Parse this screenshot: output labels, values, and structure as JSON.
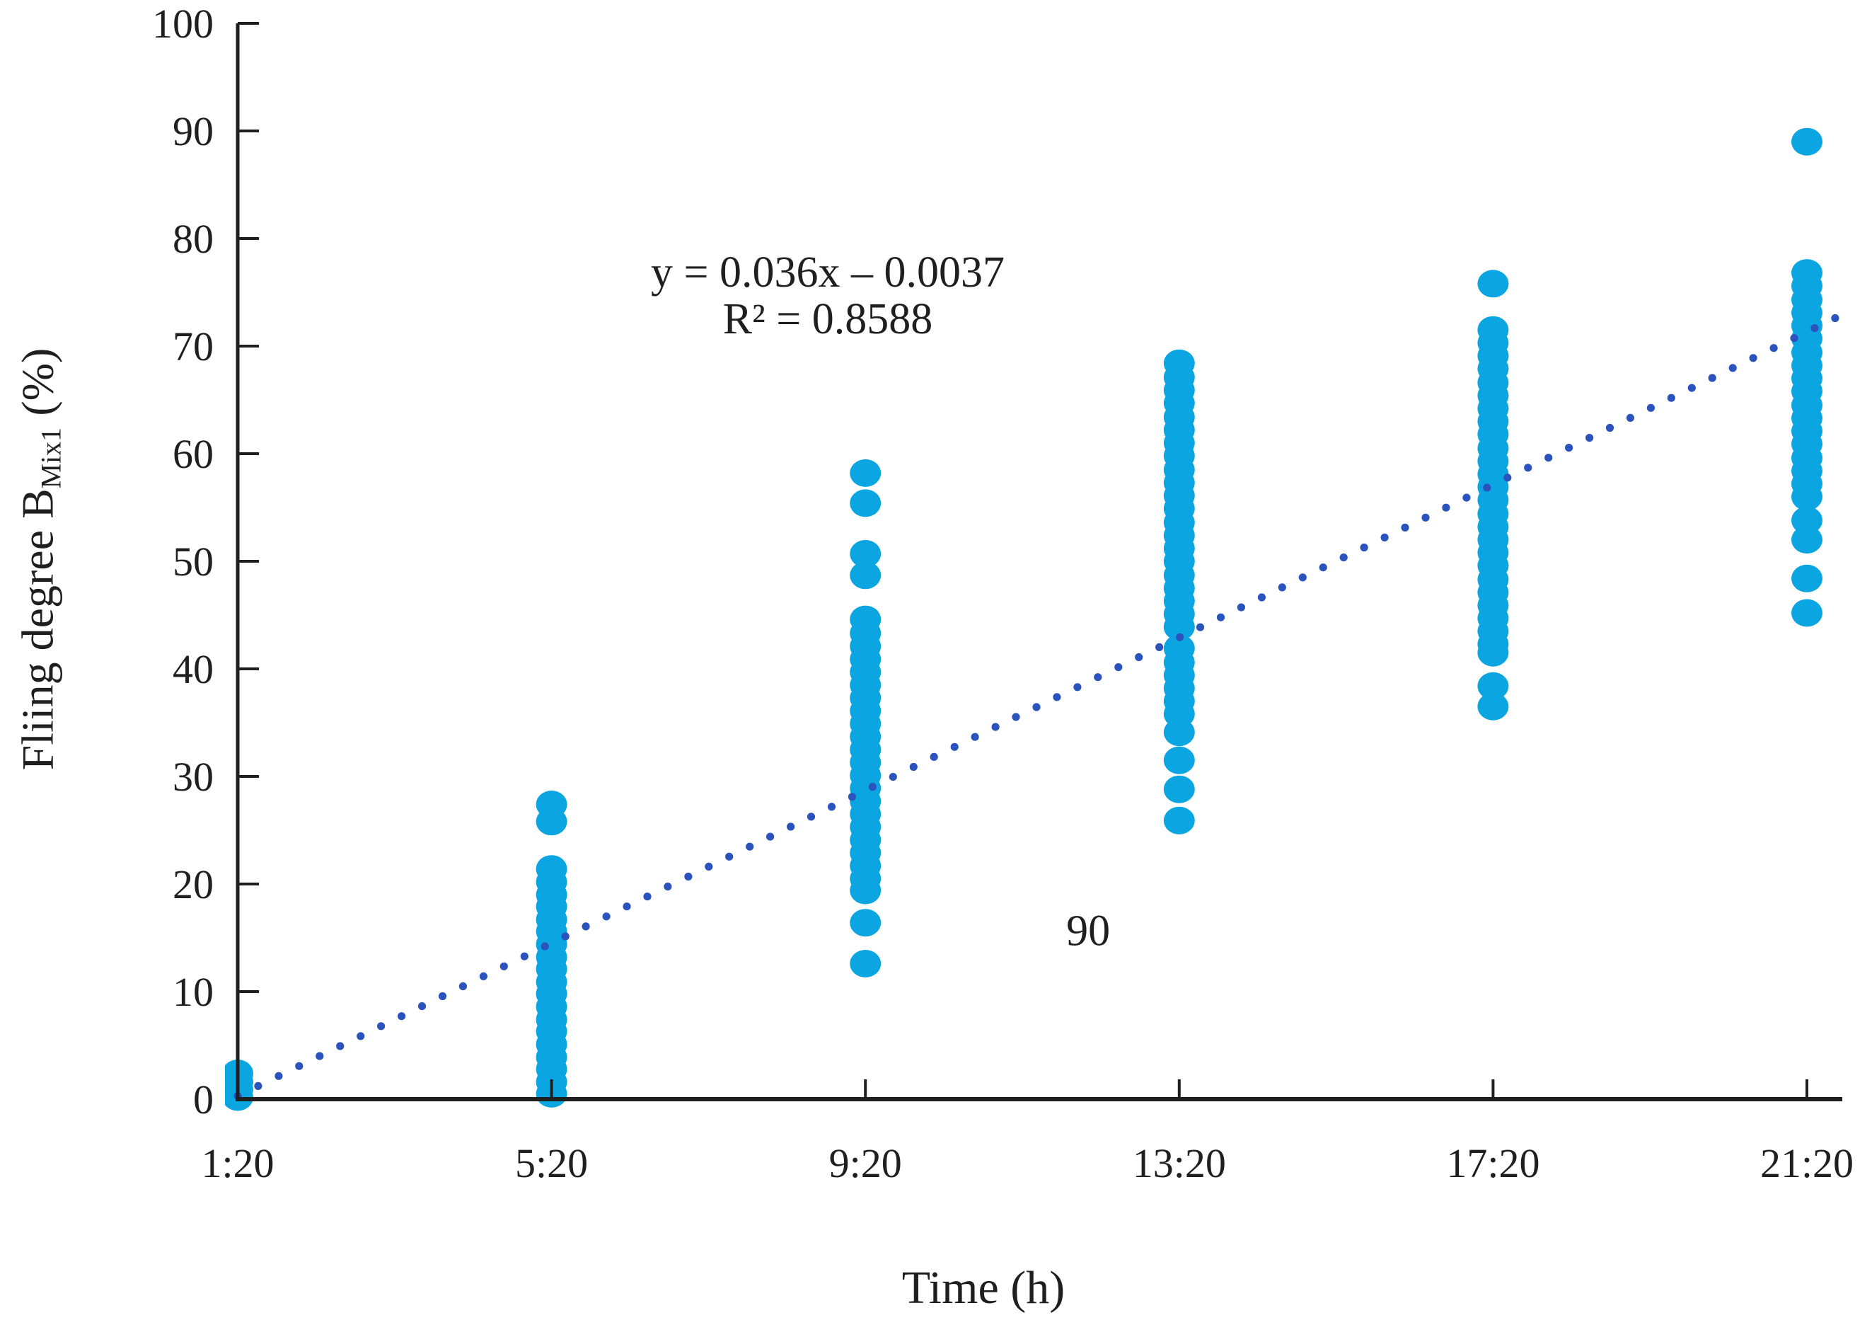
{
  "chart_data": {
    "type": "scatter",
    "title": "",
    "xlabel": "Time (h)",
    "ylabel": {
      "prefix": "Fliing degree B",
      "subscript": "Mix1",
      "suffix": "(%)"
    },
    "x_categories": [
      "1:20",
      "5:20",
      "9:20",
      "13:20",
      "17:20",
      "21:20"
    ],
    "ylim": [
      0,
      100
    ],
    "yticks": [
      0,
      10,
      20,
      30,
      40,
      50,
      60,
      70,
      80,
      90,
      100
    ],
    "grid": false,
    "legend": "none",
    "axis_color": "#1f1f1f",
    "marker_color": "#0BA5E1",
    "series": [
      {
        "name": "Filling degree BMix1",
        "color": "#0BA5E1",
        "clusters": [
          {
            "category": "1:20",
            "values": [
              2.4,
              1.6,
              0.9,
              0.2
            ]
          },
          {
            "category": "5:20",
            "values": [
              27.4,
              25.8,
              21.4,
              20.2,
              19.0,
              17.9,
              16.7,
              15.6,
              14.4,
              13.2,
              12.1,
              10.9,
              9.8,
              8.6,
              7.4,
              6.3,
              5.1,
              3.9,
              2.8,
              1.6,
              0.5
            ]
          },
          {
            "category": "9:20",
            "values": [
              58.2,
              55.4,
              50.7,
              48.7,
              44.6,
              43.3,
              42.1,
              40.9,
              39.7,
              38.5,
              37.3,
              36.1,
              34.9,
              33.7,
              32.5,
              31.3,
              30.1,
              28.9,
              27.7,
              26.5,
              25.3,
              24.1,
              22.9,
              21.7,
              20.5,
              19.4,
              16.4,
              12.6
            ]
          },
          {
            "category": "13:20",
            "values": [
              68.4,
              67.1,
              65.9,
              64.7,
              63.4,
              62.2,
              61.0,
              59.8,
              58.5,
              57.3,
              56.1,
              54.9,
              53.6,
              52.4,
              51.2,
              50.0,
              48.7,
              47.5,
              46.3,
              45.1,
              43.9,
              41.9,
              40.6,
              39.4,
              38.2,
              37.0,
              35.8,
              34.1,
              31.5,
              28.8,
              25.9
            ]
          },
          {
            "category": "17:20",
            "values": [
              75.8,
              71.5,
              70.3,
              69.1,
              67.9,
              66.6,
              65.4,
              64.2,
              63.0,
              61.8,
              60.5,
              59.3,
              58.1,
              56.9,
              55.7,
              54.4,
              53.2,
              52.0,
              50.8,
              49.6,
              48.3,
              47.1,
              45.9,
              44.7,
              43.5,
              42.3,
              41.5,
              38.4,
              36.5
            ]
          },
          {
            "category": "21:20",
            "values": [
              89.0,
              76.8,
              75.6,
              74.3,
              73.1,
              71.9,
              70.7,
              69.4,
              68.2,
              67.0,
              65.8,
              64.5,
              63.3,
              62.1,
              60.9,
              59.6,
              58.4,
              57.2,
              56.0,
              53.8,
              52.0,
              48.4,
              45.2
            ]
          }
        ]
      }
    ],
    "trendline": {
      "style": "dotted",
      "color": "#2B53BE",
      "equation": "y = 0.036x – 0.0037",
      "r_squared": "R² = 0.8588",
      "start": {
        "x_index": 0,
        "value": 0.3
      },
      "end": {
        "x_index": 5.09,
        "value": 72.6
      }
    },
    "annotations": [
      {
        "text": "90",
        "x_index": 2.71,
        "value": 15.6
      }
    ]
  }
}
